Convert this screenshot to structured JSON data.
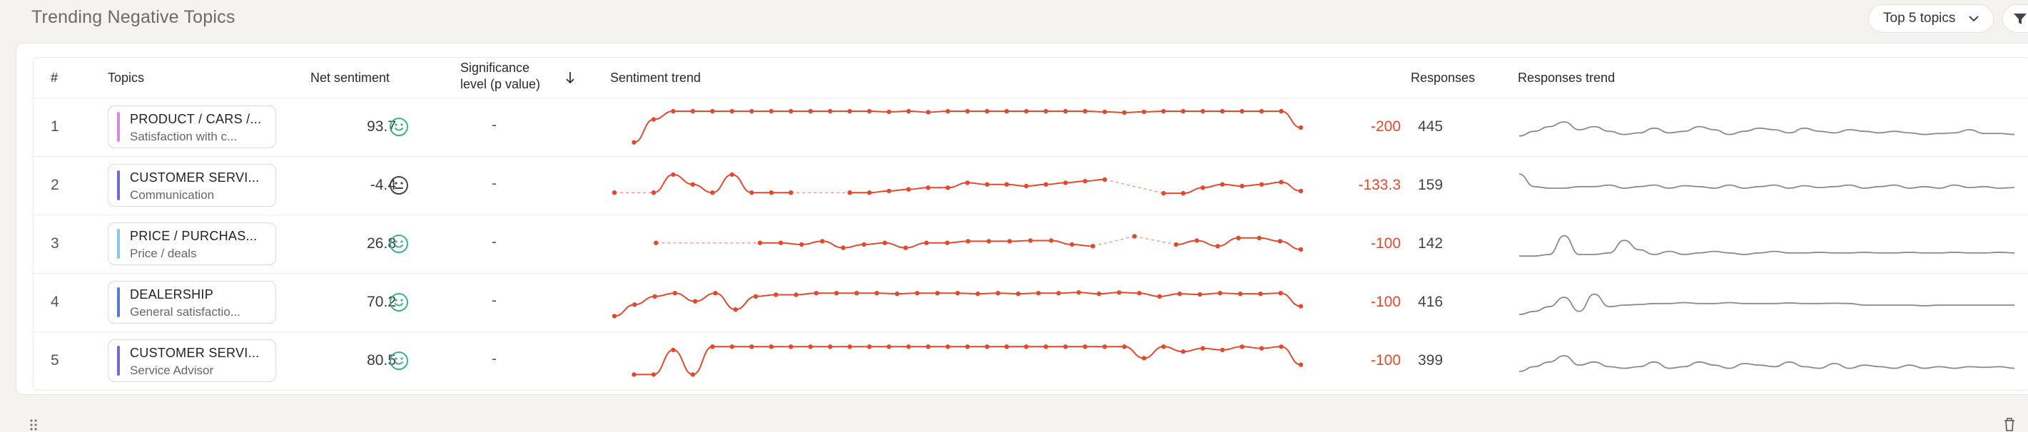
{
  "panel": {
    "title": "Trending Negative Topics"
  },
  "dropdown": {
    "label": "Top 5 topics"
  },
  "columns": {
    "num": "#",
    "topics": "Topics",
    "net": "Net sentiment",
    "sig_line1": "Significance",
    "sig_line2": "level (p value)",
    "trend": "Sentiment trend",
    "responses": "Responses",
    "rtrend": "Responses trend"
  },
  "colors": {
    "accent": "#e14a2e",
    "positive_face": "#3cb48a",
    "neutral_face": "#444444",
    "grey_line": "#8a8a8a"
  },
  "rows": [
    {
      "num": "1",
      "category": "PRODUCT / CARS /...",
      "subtopic": "Satisfaction with c...",
      "bar_color": "#d98ae0",
      "net": "93.7",
      "face": "smile-icon",
      "sig": "-",
      "delta": "-200",
      "responses": "445",
      "trend": [
        null,
        0.05,
        0.75,
        1,
        1,
        1,
        1,
        1,
        1,
        1,
        1,
        1,
        1,
        1,
        0.98,
        1,
        0.97,
        1,
        1,
        1,
        1,
        1,
        1,
        1,
        1,
        0.98,
        0.96,
        0.98,
        1,
        1,
        1,
        1,
        1,
        1,
        1,
        0.5
      ],
      "rtrend": [
        0.3,
        0.45,
        0.6,
        0.75,
        0.5,
        0.6,
        0.45,
        0.35,
        0.4,
        0.55,
        0.4,
        0.45,
        0.6,
        0.5,
        0.35,
        0.45,
        0.55,
        0.5,
        0.4,
        0.55,
        0.45,
        0.4,
        0.5,
        0.45,
        0.4,
        0.45,
        0.4,
        0.35,
        0.38,
        0.4,
        0.5,
        0.38,
        0.38,
        0.35
      ]
    },
    {
      "num": "2",
      "category": "CUSTOMER SERVI...",
      "subtopic": "Communication",
      "bar_color": "#6e6ad6",
      "net": "-4.4",
      "face": "neutral-face-icon",
      "sig": "-",
      "delta": "-133.3",
      "responses": "159",
      "trend": [
        0.3,
        null,
        0.3,
        0.85,
        0.55,
        0.3,
        0.85,
        0.3,
        0.3,
        0.3,
        null,
        null,
        0.3,
        0.3,
        0.35,
        0.4,
        0.45,
        0.45,
        0.6,
        0.55,
        0.55,
        0.5,
        0.55,
        0.6,
        0.65,
        0.7,
        null,
        null,
        0.28,
        0.28,
        0.45,
        0.55,
        0.5,
        0.55,
        0.62,
        0.35
      ],
      "rtrend": [
        0.95,
        0.55,
        0.5,
        0.5,
        0.55,
        0.55,
        0.6,
        0.5,
        0.55,
        0.6,
        0.5,
        0.58,
        0.55,
        0.5,
        0.6,
        0.5,
        0.55,
        0.6,
        0.5,
        0.58,
        0.52,
        0.55,
        0.6,
        0.5,
        0.55,
        0.6,
        0.5,
        0.55,
        0.5,
        0.6,
        0.52,
        0.55,
        0.5,
        0.52
      ]
    },
    {
      "num": "3",
      "category": "PRICE / PURCHAS...",
      "subtopic": "Price / deals",
      "bar_color": "#88c6e6",
      "net": "26.8",
      "face": "smile-icon",
      "sig": "-",
      "delta": "-100",
      "responses": "142",
      "trend": [
        null,
        null,
        0.55,
        null,
        null,
        null,
        null,
        0.55,
        0.55,
        0.5,
        0.6,
        0.4,
        0.5,
        0.55,
        0.4,
        0.55,
        0.55,
        0.6,
        0.6,
        0.6,
        0.62,
        0.62,
        0.5,
        0.45,
        null,
        0.75,
        null,
        0.5,
        0.62,
        0.45,
        0.7,
        0.7,
        0.6,
        0.35
      ],
      "rtrend": [
        0.2,
        0.2,
        0.25,
        0.85,
        0.25,
        0.25,
        0.3,
        0.7,
        0.4,
        0.25,
        0.35,
        0.25,
        0.3,
        0.35,
        0.3,
        0.25,
        0.3,
        0.35,
        0.3,
        0.3,
        0.32,
        0.3,
        0.3,
        0.32,
        0.3,
        0.3,
        0.32,
        0.3,
        0.3,
        0.32,
        0.3,
        0.3,
        0.32,
        0.3
      ]
    },
    {
      "num": "4",
      "category": "DEALERSHIP",
      "subtopic": "General satisfactio...",
      "bar_color": "#5a79d6",
      "net": "70.2",
      "face": "smile-icon",
      "sig": "-",
      "delta": "-100",
      "responses": "416",
      "trend": [
        0.1,
        0.45,
        0.7,
        0.8,
        0.55,
        0.8,
        0.3,
        0.7,
        0.75,
        0.75,
        0.8,
        0.8,
        0.8,
        0.8,
        0.78,
        0.8,
        0.8,
        0.8,
        0.78,
        0.8,
        0.78,
        0.8,
        0.8,
        0.82,
        0.78,
        0.82,
        0.8,
        0.7,
        0.78,
        0.76,
        0.8,
        0.78,
        0.78,
        0.8,
        0.4
      ],
      "rtrend": [
        0.2,
        0.3,
        0.45,
        0.75,
        0.3,
        0.85,
        0.45,
        0.5,
        0.52,
        0.55,
        0.55,
        0.58,
        0.55,
        0.55,
        0.58,
        0.55,
        0.55,
        0.55,
        0.57,
        0.55,
        0.55,
        0.56,
        0.55,
        0.5,
        0.5,
        0.5,
        0.5,
        0.48,
        0.5,
        0.5,
        0.5,
        0.5,
        0.5,
        0.5
      ]
    },
    {
      "num": "5",
      "category": "CUSTOMER SERVI...",
      "subtopic": "Service Advisor",
      "bar_color": "#6e6ad6",
      "net": "80.5",
      "face": "smile-icon",
      "sig": "-",
      "delta": "-100",
      "responses": "399",
      "trend": [
        null,
        0.1,
        0.1,
        0.85,
        0.1,
        0.95,
        0.95,
        0.95,
        0.95,
        0.95,
        0.95,
        0.95,
        0.95,
        0.95,
        0.95,
        0.95,
        0.95,
        0.95,
        0.95,
        0.95,
        0.95,
        0.95,
        0.95,
        0.95,
        0.95,
        0.95,
        0.95,
        0.6,
        0.95,
        0.8,
        0.9,
        0.85,
        0.95,
        0.9,
        0.95,
        0.4
      ],
      "rtrend": [
        0.25,
        0.4,
        0.55,
        0.75,
        0.45,
        0.55,
        0.4,
        0.35,
        0.4,
        0.55,
        0.35,
        0.4,
        0.55,
        0.45,
        0.35,
        0.5,
        0.45,
        0.4,
        0.55,
        0.4,
        0.35,
        0.5,
        0.35,
        0.45,
        0.4,
        0.35,
        0.45,
        0.35,
        0.4,
        0.35,
        0.4,
        0.38,
        0.4,
        0.35
      ]
    }
  ]
}
